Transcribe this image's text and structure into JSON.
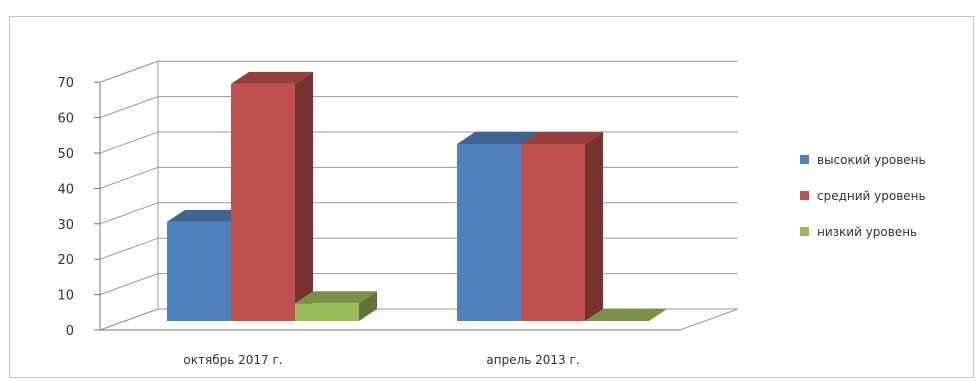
{
  "chart_data": {
    "type": "bar",
    "categories": [
      "октябрь 2017  г.",
      "апрель 2013 г."
    ],
    "series": [
      {
        "name": "высокий уровень",
        "values": [
          28,
          50
        ],
        "color": "#4f81bd"
      },
      {
        "name": "средний уровень",
        "values": [
          67,
          50
        ],
        "color": "#c0504d"
      },
      {
        "name": "низкий уровень",
        "values": [
          5,
          0
        ],
        "color": "#9bbb59"
      }
    ],
    "ylim": [
      0,
      70
    ],
    "yticks": [
      0,
      10,
      20,
      30,
      40,
      50,
      60,
      70
    ],
    "grid": true,
    "legend_position": "right",
    "projection": "3d-clustered"
  }
}
